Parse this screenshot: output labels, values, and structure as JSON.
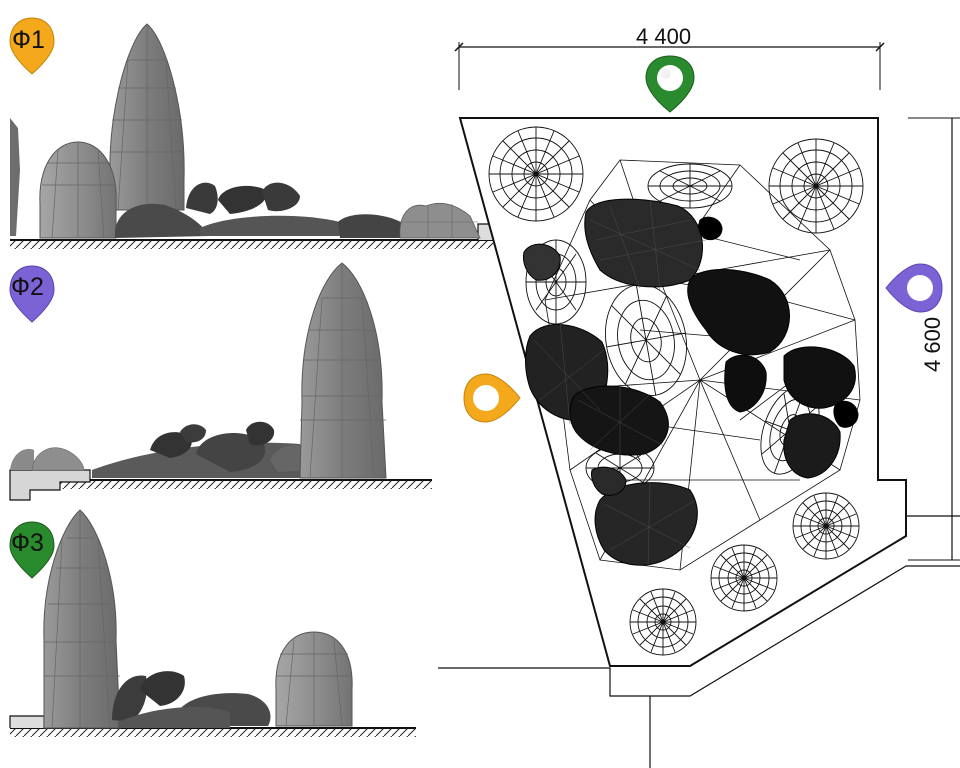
{
  "colors": {
    "pin_orange": "#f4a81c",
    "pin_purple": "#7b63d6",
    "pin_green": "#2a8a2e",
    "stone_fill": "#8c8c8c",
    "boulder_fill": "#3c3c3c",
    "line": "#111111"
  },
  "elevations": [
    {
      "label": "Ф1",
      "pin_color": "orange"
    },
    {
      "label": "Ф2",
      "pin_color": "purple"
    },
    {
      "label": "Ф3",
      "pin_color": "green"
    }
  ],
  "plan": {
    "width_dimension": "4 400",
    "height_dimension": "4 600",
    "view_pins": [
      "green-top",
      "purple-right",
      "orange-left"
    ]
  }
}
